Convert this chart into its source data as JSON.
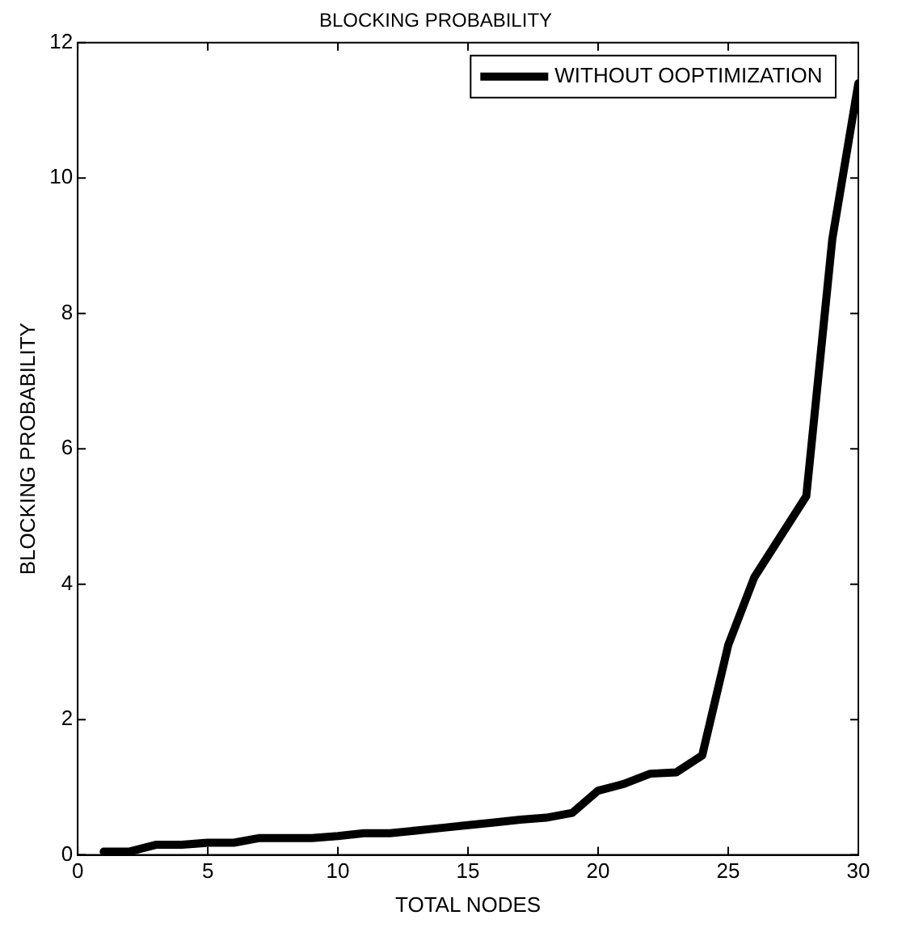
{
  "chart_data": {
    "type": "line",
    "title": "BLOCKING PROBABILITY",
    "xlabel": "TOTAL NODES",
    "ylabel": "BLOCKING PROBABILITY",
    "x": [
      1,
      2,
      3,
      4,
      5,
      6,
      7,
      8,
      9,
      10,
      11,
      12,
      13,
      14,
      15,
      16,
      17,
      18,
      19,
      20,
      21,
      22,
      23,
      24,
      25,
      26,
      27,
      28,
      29,
      30
    ],
    "series": [
      {
        "name": "WITHOUT OOPTIMIZATION",
        "color": "#000000",
        "values": [
          0.05,
          0.05,
          0.15,
          0.15,
          0.18,
          0.18,
          0.25,
          0.25,
          0.25,
          0.28,
          0.32,
          0.32,
          0.36,
          0.4,
          0.44,
          0.48,
          0.52,
          0.55,
          0.62,
          0.95,
          1.05,
          1.2,
          1.22,
          1.47,
          3.1,
          4.1,
          4.7,
          5.3,
          9.1,
          11.4
        ]
      }
    ],
    "xlim": [
      0,
      30
    ],
    "xticks": [
      0,
      5,
      10,
      15,
      20,
      25,
      30
    ],
    "ylim": [
      0,
      12
    ],
    "yticks": [
      0,
      2,
      4,
      6,
      8,
      10,
      12
    ],
    "grid": false,
    "legend": "top right",
    "marker": "none",
    "line_style": "solid"
  }
}
